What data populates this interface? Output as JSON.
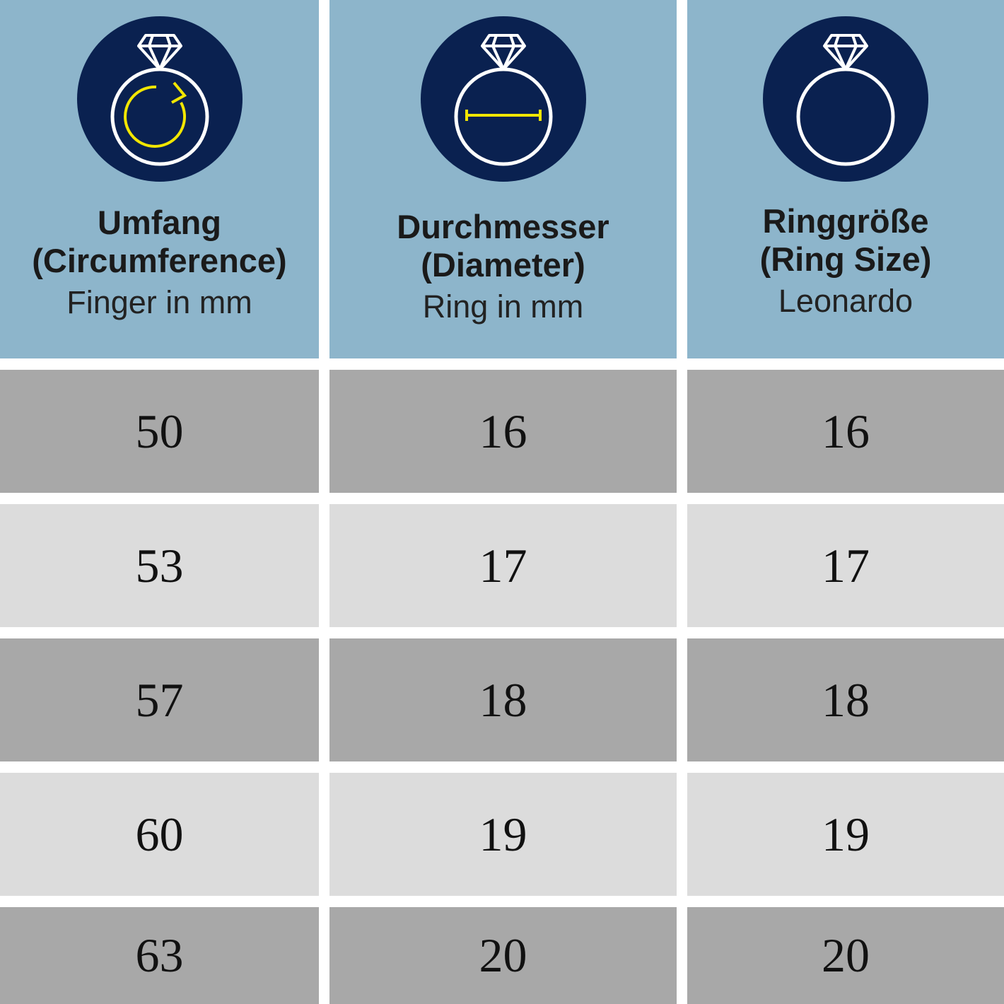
{
  "colors": {
    "header": "#8db5cb",
    "icon_circle": "#0a2150",
    "accent": "#f2e600",
    "row_dark": "#a8a8a8",
    "row_light": "#dcdcdc"
  },
  "columns": [
    {
      "icon": "ring-circumference-icon",
      "title": "Umfang",
      "subtitle": "(Circumference)",
      "unit": "Finger in mm"
    },
    {
      "icon": "ring-diameter-icon",
      "title": "Durchmesser",
      "subtitle": "(Diameter)",
      "unit": "Ring in mm"
    },
    {
      "icon": "ring-size-icon",
      "title": "Ringgröße",
      "subtitle": "(Ring Size)",
      "unit": "Leonardo"
    }
  ],
  "rows": [
    [
      "50",
      "16",
      "16"
    ],
    [
      "53",
      "17",
      "17"
    ],
    [
      "57",
      "18",
      "18"
    ],
    [
      "60",
      "19",
      "19"
    ],
    [
      "63",
      "20",
      "20"
    ]
  ]
}
